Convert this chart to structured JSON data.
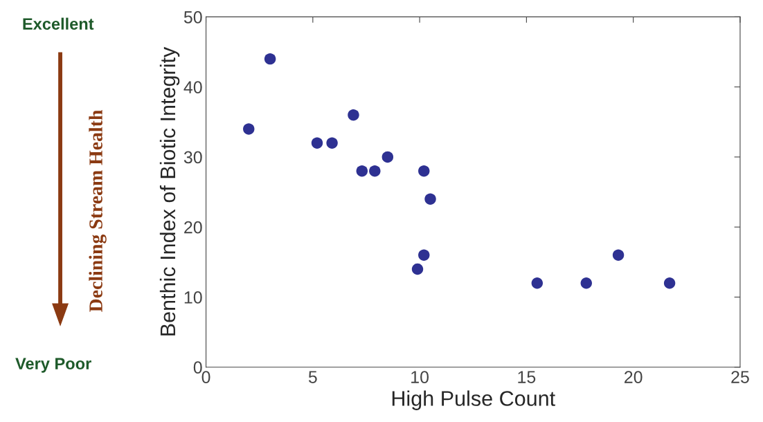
{
  "chart_data": {
    "type": "scatter",
    "xlabel": "High Pulse Count",
    "ylabel": "Benthic Index of Biotic Integrity",
    "x": [
      2,
      3,
      5.2,
      5.9,
      6.9,
      7.3,
      7.9,
      8.5,
      10.2,
      10.5,
      9.9,
      10.2,
      15.5,
      17.8,
      19.3,
      21.7
    ],
    "series": [
      {
        "color": "#2e3192",
        "values": [
          34,
          44,
          32,
          32,
          36,
          28,
          28,
          30,
          28,
          24,
          14,
          16,
          12,
          12,
          16,
          12
        ]
      }
    ],
    "xlim": [
      0,
      25
    ],
    "xticks": [
      0,
      5,
      10,
      15,
      20,
      25
    ],
    "ylim": [
      0,
      50
    ],
    "yticks": [
      0,
      10,
      20,
      30,
      40,
      50
    ],
    "grid": false,
    "legend": false,
    "marker": "circle",
    "annotations": [
      "Excellent",
      "Declining Stream Health",
      "Very Poor"
    ]
  }
}
